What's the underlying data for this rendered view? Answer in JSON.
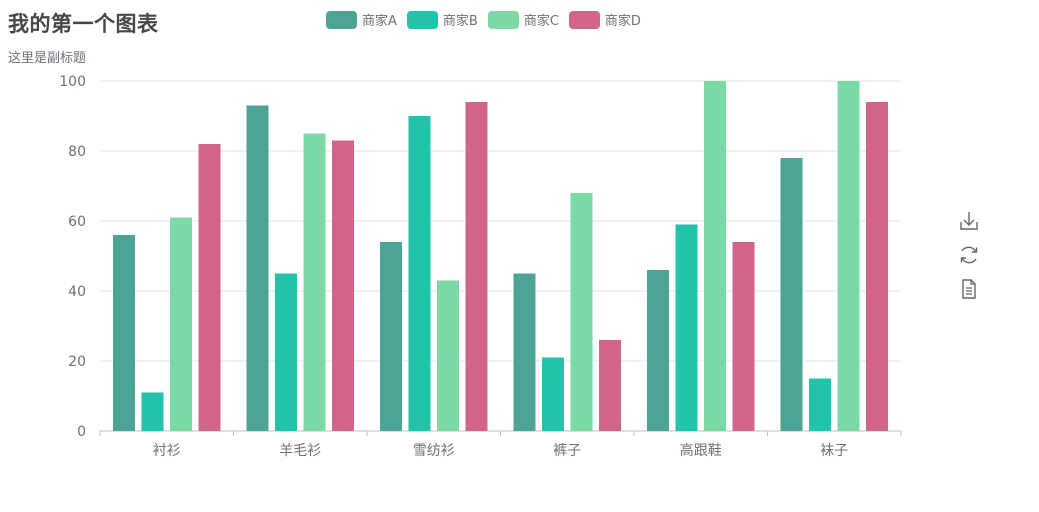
{
  "title": "我的第一个图表",
  "subtitle": "这里是副标题",
  "colors": {
    "series": [
      "#4ea397",
      "#22c3aa",
      "#7bd9a5",
      "#d0648a"
    ],
    "axis": "#6e7079",
    "grid": "#e0e6f1",
    "axisLine": "#bfbfbf",
    "tool": "#666666"
  },
  "toolbox": {
    "icons": [
      "download-icon",
      "refresh-icon",
      "data-view-icon"
    ]
  },
  "chart_data": {
    "type": "bar",
    "title": "我的第一个图表",
    "subtitle": "这里是副标题",
    "categories": [
      "衬衫",
      "羊毛衫",
      "雪纺衫",
      "裤子",
      "高跟鞋",
      "袜子"
    ],
    "series": [
      {
        "name": "商家A",
        "values": [
          56,
          93,
          54,
          45,
          46,
          78
        ]
      },
      {
        "name": "商家B",
        "values": [
          11,
          45,
          90,
          21,
          59,
          15
        ]
      },
      {
        "name": "商家C",
        "values": [
          61,
          85,
          43,
          68,
          100,
          100
        ]
      },
      {
        "name": "商家D",
        "values": [
          82,
          83,
          94,
          26,
          54,
          94
        ]
      }
    ],
    "ylim": [
      0,
      100
    ],
    "yticks": [
      0,
      20,
      40,
      60,
      80,
      100
    ],
    "grid": true,
    "legend": "top-center"
  }
}
